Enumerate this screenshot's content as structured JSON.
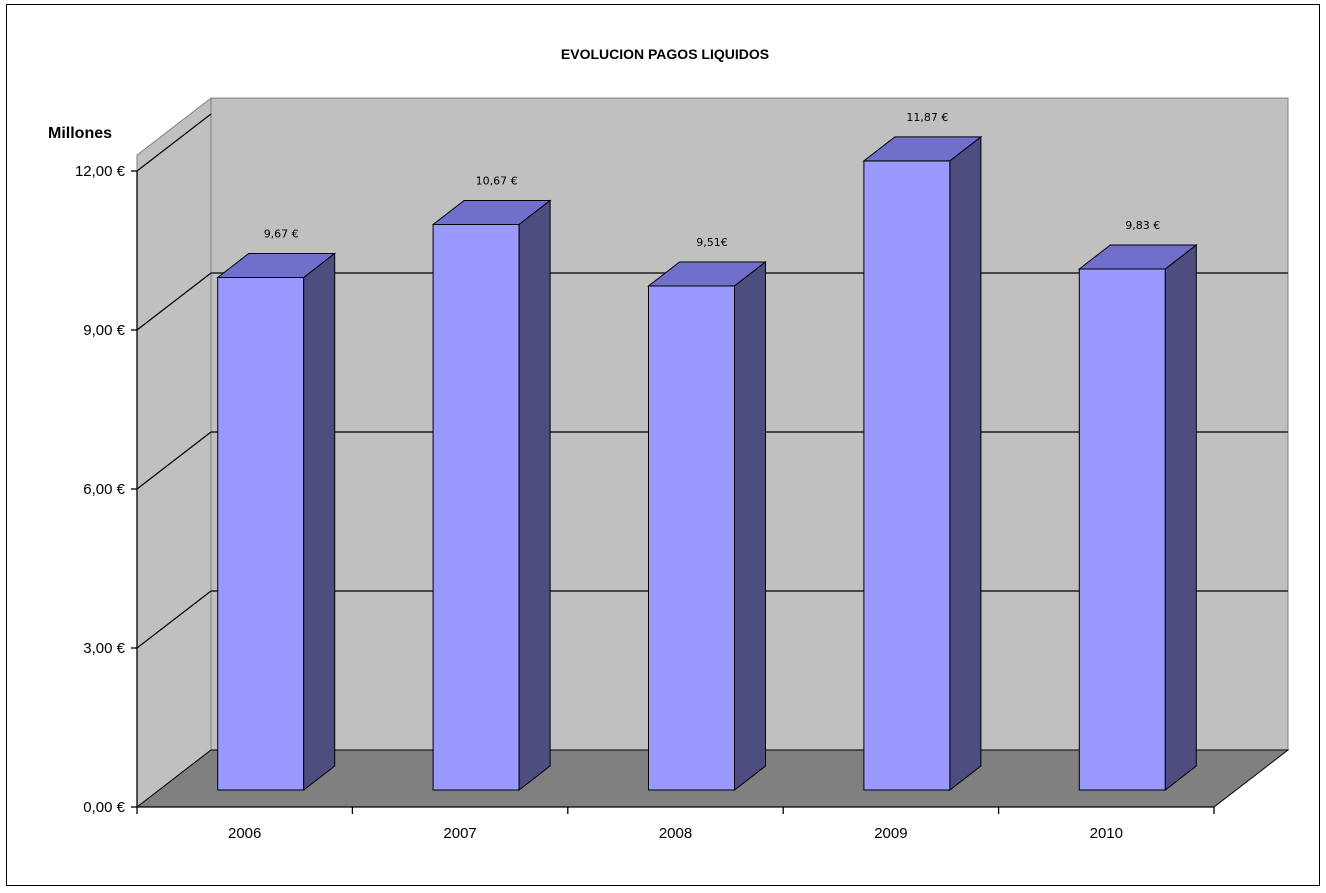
{
  "chart_data": {
    "type": "bar",
    "style": "3d-column",
    "title": "EVOLUCION PAGOS LIQUIDOS",
    "unit_label": "Millones",
    "categories": [
      "2006",
      "2007",
      "2008",
      "2009",
      "2010"
    ],
    "values": [
      9.67,
      10.67,
      9.51,
      11.87,
      9.83
    ],
    "data_labels": [
      "9,67 €",
      "10,67 €",
      "9,51€",
      "11,87 €",
      "9,83 €"
    ],
    "y_ticks": [
      "0,00 €",
      "3,00 €",
      "6,00 €",
      "9,00 €",
      "12,00 €"
    ],
    "ylim": [
      0,
      12
    ],
    "grid": true,
    "legend": "none",
    "colors": {
      "bar_front": "#9999ff",
      "bar_top": "#7070cc",
      "bar_side": "#4d4d80",
      "back_wall": "#c0c0c0",
      "floor": "#808080"
    }
  }
}
